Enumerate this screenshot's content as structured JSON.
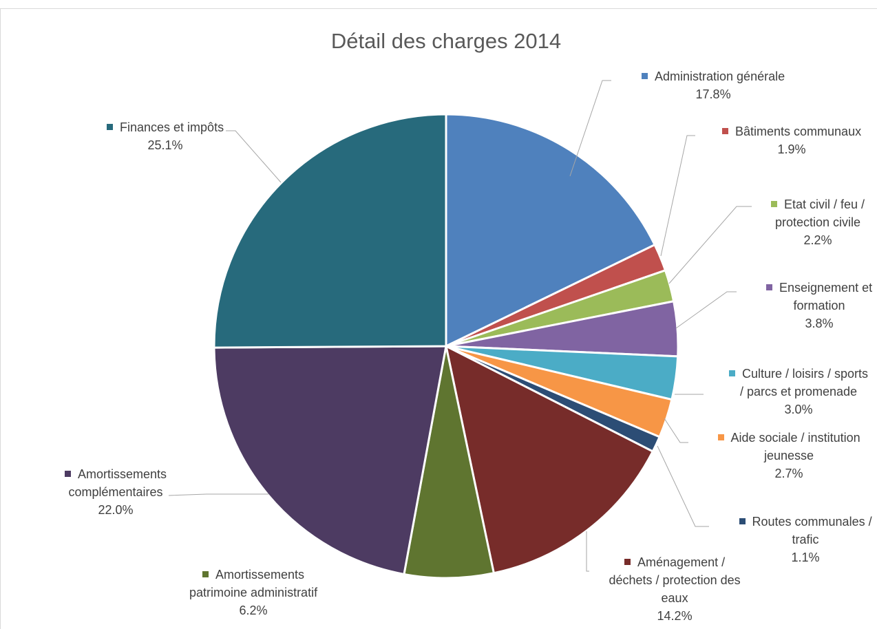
{
  "chart_data": {
    "type": "pie",
    "title": "Détail des charges 2014",
    "slices": [
      {
        "label_lines": [
          "Administration générale"
        ],
        "value_label": "17.8%",
        "value": 17.8,
        "color": "#4F81BD"
      },
      {
        "label_lines": [
          "Bâtiments communaux"
        ],
        "value_label": "1.9%",
        "value": 1.9,
        "color": "#C0504D"
      },
      {
        "label_lines": [
          "Etat civil / feu /",
          "protection civile"
        ],
        "value_label": "2.2%",
        "value": 2.2,
        "color": "#9BBB59"
      },
      {
        "label_lines": [
          "Enseignement et",
          "formation"
        ],
        "value_label": "3.8%",
        "value": 3.8,
        "color": "#8064A2"
      },
      {
        "label_lines": [
          "Culture / loisirs / sports",
          "/ parcs et promenade"
        ],
        "value_label": "3.0%",
        "value": 3.0,
        "color": "#4BACC6"
      },
      {
        "label_lines": [
          "Aide sociale / institution",
          "jeunesse"
        ],
        "value_label": "2.7%",
        "value": 2.7,
        "color": "#F79646"
      },
      {
        "label_lines": [
          "Routes communales /",
          "trafic"
        ],
        "value_label": "1.1%",
        "value": 1.1,
        "color": "#2C4D75"
      },
      {
        "label_lines": [
          "Aménagement /",
          "déchets / protection des",
          "eaux"
        ],
        "value_label": "14.2%",
        "value": 14.2,
        "color": "#772C2A"
      },
      {
        "label_lines": [
          "Amortissements",
          "patrimoine administratif"
        ],
        "value_label": "6.2%",
        "value": 6.2,
        "color": "#5F7530"
      },
      {
        "label_lines": [
          "Amortissements",
          "complémentaires"
        ],
        "value_label": "22.0%",
        "value": 22.0,
        "color": "#4D3B62"
      },
      {
        "label_lines": [
          "Finances et impôts"
        ],
        "value_label": "25.1%",
        "value": 25.1,
        "color": "#276A7C"
      }
    ],
    "legend": "none"
  }
}
